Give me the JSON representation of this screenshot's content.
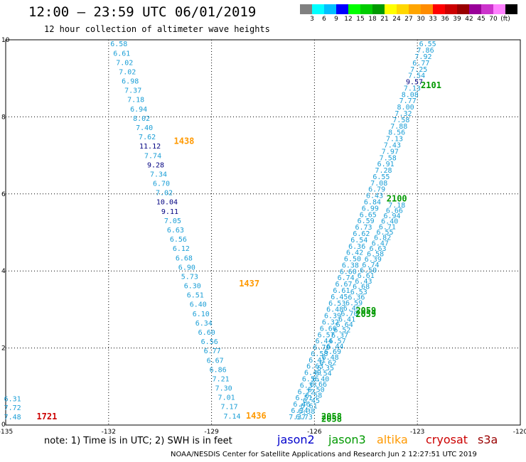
{
  "header": {
    "title": "12:00 — 23:59 UTC 06/01/2019",
    "subtitle": "12 hour collection of altimeter wave heights"
  },
  "legend": {
    "colors": [
      "#808080",
      "#00ffff",
      "#00bfff",
      "#0000ff",
      "#00ff00",
      "#00cc00",
      "#009900",
      "#ffff00",
      "#ffd700",
      "#ffa500",
      "#ff8c00",
      "#ff0000",
      "#cc0000",
      "#990000",
      "#990099",
      "#cc33cc",
      "#ff80ff",
      "#000000"
    ],
    "labels": [
      "3",
      "6",
      "9",
      "12",
      "15",
      "18",
      "21",
      "24",
      "27",
      "30",
      "33",
      "36",
      "39",
      "42",
      "45",
      "70",
      "(ft)"
    ]
  },
  "axes": {
    "x_ticks": [
      "-135",
      "-132",
      "-129",
      "-126",
      "-123",
      "-120"
    ],
    "y_ticks": [
      "0",
      "2",
      "4",
      "6",
      "8",
      "10"
    ],
    "x_range": [
      -135,
      -120
    ],
    "y_range": [
      0,
      10
    ]
  },
  "tracks": [
    {
      "name": "left-track",
      "start": [
        -131.7,
        9.83
      ],
      "end": [
        -128.4,
        0.17
      ],
      "values": [
        "6.58",
        "6.61",
        "7.02",
        "7.02",
        "6.98",
        "7.37",
        "7.18",
        "6.94",
        "8.02",
        "7.40",
        "7.62",
        "11.12",
        "7.74",
        "9.28",
        "7.34",
        "6.70",
        "7.02",
        "10.04",
        "9.11",
        "7.05",
        "6.63",
        "6.56",
        "6.12",
        "6.68",
        "6.90",
        "5.73",
        "6.30",
        "6.51",
        "6.40",
        "6.10",
        "6.34",
        "6.60",
        "6.56",
        "6.77",
        "6.67",
        "6.86",
        "7.21",
        "7.30",
        "7.01",
        "7.17",
        "7.14"
      ],
      "colors": {
        "11.12": "#000080",
        "9.28": "#000080",
        "10.04": "#000080",
        "9.11": "#000080"
      },
      "time_labels": [
        {
          "text": "1438",
          "x": -130.1,
          "y": 7.3,
          "color": "#ff9900"
        },
        {
          "text": "1437",
          "x": -128.2,
          "y": 3.6,
          "color": "#ff9900"
        },
        {
          "text": "1436",
          "x": -128.0,
          "y": 0.17,
          "color": "#ff9900"
        }
      ]
    },
    {
      "name": "corner-track",
      "start": [
        -134.8,
        0.62
      ],
      "end": [
        -134.8,
        0.15
      ],
      "values": [
        "6.31",
        "7.72",
        "7.48"
      ],
      "colors": {},
      "time_labels": [
        {
          "text": "1721",
          "x": -134.1,
          "y": 0.15,
          "color": "#cc0000"
        }
      ]
    },
    {
      "name": "right-track-a",
      "start": [
        -122.7,
        9.83
      ],
      "end": [
        -126.5,
        0.15
      ],
      "values": [
        "6.55",
        "7.86",
        "7.92",
        "6.77",
        "7.25",
        "7.54",
        "9.57",
        "7.13",
        "8.08",
        "7.77",
        "8.00",
        "7.32",
        "7.58",
        "7.88",
        "8.56",
        "7.13",
        "7.43",
        "7.97",
        "7.58",
        "6.91",
        "7.28",
        "6.55",
        "7.08",
        "6.79",
        "6.43",
        "6.84",
        "6.99",
        "6.65",
        "6.59",
        "6.73",
        "6.62",
        "6.54",
        "6.36",
        "6.42",
        "6.50",
        "6.38",
        "6.60",
        "6.74",
        "6.67",
        "6.61",
        "6.45",
        "6.53",
        "6.48",
        "6.39",
        "6.32",
        "6.66",
        "6.57",
        "6.44",
        "6.70",
        "6.58",
        "6.41",
        "6.63",
        "6.49",
        "6.56",
        "6.37",
        "6.72",
        "6.51",
        "6.46",
        "6.34",
        "7.37"
      ],
      "colors": {
        "9.57": "#000080"
      },
      "time_labels": [
        {
          "text": "2101",
          "x": -122.9,
          "y": 8.75,
          "color": "#009900"
        },
        {
          "text": "2100",
          "x": -123.9,
          "y": 5.8,
          "color": "#009900"
        },
        {
          "text": "2059",
          "x": -124.8,
          "y": 2.8,
          "color": "#009900"
        },
        {
          "text": "2058",
          "x": -125.8,
          "y": 0.15,
          "color": "#009900"
        }
      ]
    },
    {
      "name": "right-track-b",
      "start": [
        -123.6,
        5.65
      ],
      "end": [
        -126.3,
        0.15
      ],
      "values": [
        "7.18",
        "6.66",
        "6.94",
        "6.40",
        "6.71",
        "6.55",
        "6.82",
        "6.47",
        "6.63",
        "6.58",
        "6.39",
        "6.74",
        "6.50",
        "6.61",
        "6.43",
        "6.68",
        "6.53",
        "6.36",
        "6.59",
        "6.46",
        "6.70",
        "6.41",
        "6.64",
        "6.52",
        "6.37",
        "6.57",
        "6.44",
        "6.69",
        "6.48",
        "6.62",
        "6.35",
        "6.54",
        "6.40",
        "6.66",
        "6.50",
        "6.58",
        "6.45",
        "6.61",
        "6.38",
        "6.73"
      ],
      "colors": {},
      "time_labels": [
        {
          "text": "2059",
          "x": -124.8,
          "y": 2.9,
          "color": "#009900"
        },
        {
          "text": "2058",
          "x": -125.8,
          "y": 0.08,
          "color": "#009900"
        }
      ]
    }
  ],
  "footer": {
    "note": "note:  1) Time is in UTC;  2) SWH is in feet",
    "satellites": [
      {
        "name": "jason2",
        "color": "#0000cc"
      },
      {
        "name": "jason3",
        "color": "#009900"
      },
      {
        "name": "altika",
        "color": "#ff9900"
      },
      {
        "name": "cryosat",
        "color": "#cc0000"
      },
      {
        "name": "s3a",
        "color": "#990000"
      }
    ],
    "credit": "NOAA/NESDIS Center for Satellite Applications and Research    Jun  2 12:27:51 UTC 2019"
  }
}
